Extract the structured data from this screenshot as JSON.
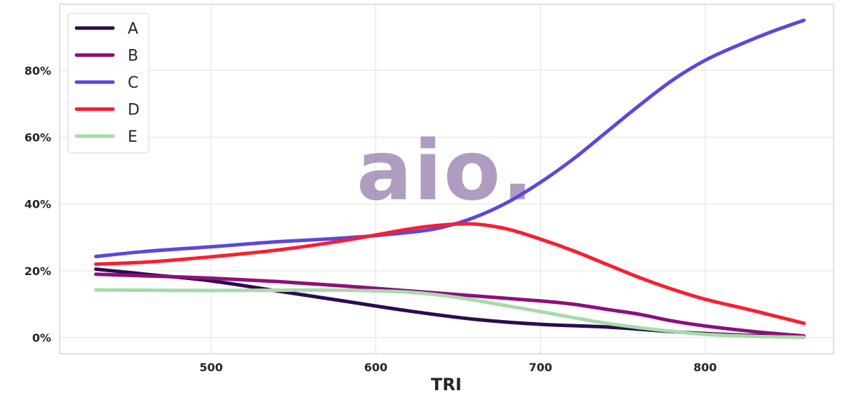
{
  "chart_data": {
    "type": "line",
    "title": "",
    "xlabel": "TRI",
    "ylabel": "",
    "xlim": [
      408,
      878
    ],
    "ylim": [
      -0.048,
      0.998
    ],
    "x_ticks": [
      500,
      600,
      700,
      800
    ],
    "y_ticks": [
      0,
      0.2,
      0.4,
      0.6,
      0.8
    ],
    "y_tick_labels": [
      "0%",
      "20%",
      "40%",
      "60%",
      "80%"
    ],
    "grid": true,
    "legend_position": "top-left",
    "watermark": "aio.",
    "series": [
      {
        "name": "A",
        "color": "#2e0b4f",
        "x": [
          430,
          460,
          500,
          540,
          580,
          620,
          660,
          700,
          740,
          780,
          820,
          860
        ],
        "y": [
          0.205,
          0.19,
          0.17,
          0.14,
          0.11,
          0.08,
          0.055,
          0.04,
          0.032,
          0.018,
          0.008,
          0.003
        ]
      },
      {
        "name": "B",
        "color": "#8e0f7a",
        "x": [
          430,
          460,
          500,
          540,
          580,
          620,
          660,
          700,
          720,
          740,
          760,
          780,
          800,
          830,
          860
        ],
        "y": [
          0.19,
          0.185,
          0.178,
          0.168,
          0.155,
          0.14,
          0.125,
          0.11,
          0.1,
          0.085,
          0.07,
          0.05,
          0.035,
          0.018,
          0.005
        ]
      },
      {
        "name": "C",
        "color": "#5d47dc",
        "x": [
          430,
          460,
          500,
          540,
          580,
          620,
          640,
          660,
          680,
          700,
          720,
          740,
          760,
          780,
          800,
          820,
          840,
          860
        ],
        "y": [
          0.243,
          0.258,
          0.272,
          0.287,
          0.298,
          0.315,
          0.33,
          0.36,
          0.405,
          0.465,
          0.535,
          0.615,
          0.695,
          0.77,
          0.83,
          0.875,
          0.915,
          0.95
        ]
      },
      {
        "name": "D",
        "color": "#f81f31",
        "x": [
          430,
          460,
          500,
          540,
          580,
          620,
          640,
          660,
          680,
          700,
          720,
          740,
          760,
          780,
          800,
          830,
          860
        ],
        "y": [
          0.22,
          0.226,
          0.242,
          0.262,
          0.29,
          0.325,
          0.337,
          0.34,
          0.325,
          0.295,
          0.26,
          0.22,
          0.18,
          0.145,
          0.115,
          0.08,
          0.043
        ]
      },
      {
        "name": "E",
        "color": "#a6dba8",
        "x": [
          430,
          460,
          500,
          540,
          580,
          620,
          650,
          680,
          700,
          720,
          740,
          760,
          780,
          800,
          830,
          860
        ],
        "y": [
          0.143,
          0.142,
          0.141,
          0.142,
          0.142,
          0.136,
          0.12,
          0.095,
          0.078,
          0.06,
          0.043,
          0.03,
          0.019,
          0.01,
          0.004,
          0.001
        ]
      }
    ]
  }
}
